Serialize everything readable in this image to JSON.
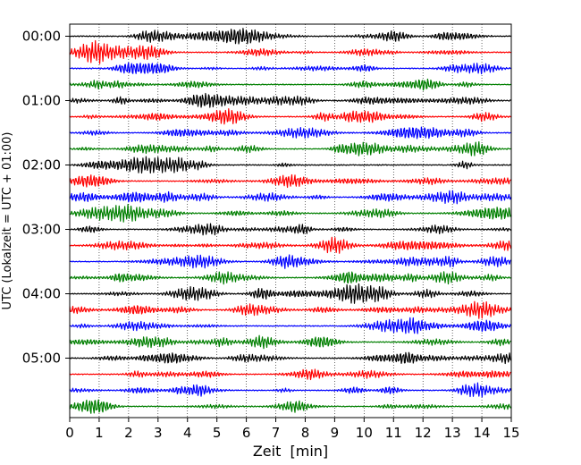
{
  "chart_data": {
    "type": "line",
    "title": "",
    "xlabel": "Zeit  [min]",
    "ylabel": "UTC (Lokalzeit = UTC + 01:00)",
    "xlim": [
      0,
      15
    ],
    "x_ticks": [
      "0",
      "1",
      "2",
      "3",
      "4",
      "5",
      "6",
      "7",
      "8",
      "9",
      "10",
      "11",
      "12",
      "13",
      "14",
      "15"
    ],
    "y_tick_labels": [
      "00:00",
      "01:00",
      "02:00",
      "03:00",
      "04:00",
      "05:00"
    ],
    "rows_per_hour": 4,
    "num_rows": 24,
    "trace_colors": [
      "#000000",
      "#ff0000",
      "#0000ff",
      "#007f00"
    ],
    "grid": "vertical dotted"
  }
}
